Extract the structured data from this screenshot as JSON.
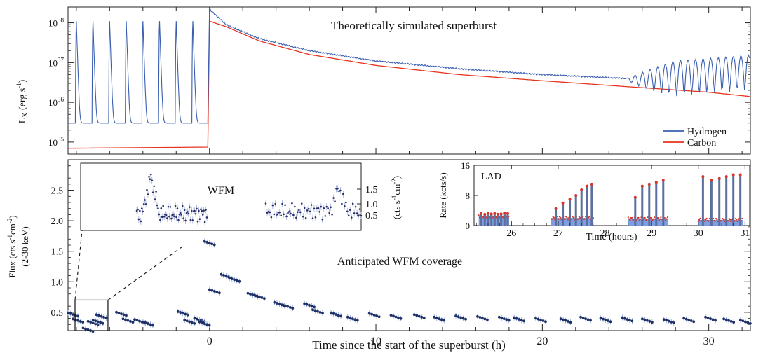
{
  "chart_data": [
    {
      "id": "top",
      "type": "line",
      "title": "Theoretically simulated superburst",
      "ylabel": "L_X (erg s^-1)",
      "yscale": "log",
      "ylim": [
        50000000000000000000000000000000000,
        250000000000000000000000000000000000000
      ],
      "xlim": [
        -8.5,
        32.5
      ],
      "ytick_labels": [
        "10^35",
        "10^36",
        "10^37",
        "10^38"
      ],
      "legend_position": "lower-right",
      "series": [
        {
          "name": "Hydrogen",
          "color": "#3a5fb0",
          "description_points": [
            {
              "x": -8.5,
              "y": 3e+35
            },
            {
              "x": -0.1,
              "y": 3e+35
            },
            {
              "x": 0.0,
              "y": 2.2e+38
            },
            {
              "x": 1.0,
              "y": 9e+37
            },
            {
              "x": 3.0,
              "y": 4e+37
            },
            {
              "x": 6.0,
              "y": 2e+37
            },
            {
              "x": 10.0,
              "y": 1.1e+37
            },
            {
              "x": 15.0,
              "y": 7e+36
            },
            {
              "x": 20.0,
              "y": 5e+36
            },
            {
              "x": 25.0,
              "y": 4e+36
            },
            {
              "x": 28.0,
              "y": 5e+36
            },
            {
              "x": 32.5,
              "y": 7e+36
            }
          ],
          "burst_peak": 1.1e+38,
          "burst_times": [
            -8.0,
            -7.0,
            -6.0,
            -5.0,
            -4.0,
            -3.0,
            -2.0,
            -1.0
          ]
        },
        {
          "name": "Carbon",
          "color": "#e8331e",
          "description_points": [
            {
              "x": -8.5,
              "y": 7e+34
            },
            {
              "x": -0.1,
              "y": 7.5e+34
            },
            {
              "x": 0.0,
              "y": 1.1e+38
            },
            {
              "x": 1.0,
              "y": 8e+37
            },
            {
              "x": 3.0,
              "y": 3.5e+37
            },
            {
              "x": 6.0,
              "y": 1.6e+37
            },
            {
              "x": 10.0,
              "y": 8.5e+36
            },
            {
              "x": 15.0,
              "y": 5e+36
            },
            {
              "x": 20.0,
              "y": 3.5e+36
            },
            {
              "x": 25.0,
              "y": 2.5e+36
            },
            {
              "x": 30.0,
              "y": 1.8e+36
            },
            {
              "x": 32.5,
              "y": 1.4e+36
            }
          ]
        }
      ]
    },
    {
      "id": "bottom",
      "type": "scatter",
      "xlabel": "Time since the start of the superburst (h)",
      "ylabel": "Flux (cts s^-1cm^-2) (2-30 keV)",
      "annotation": "Anticipated WFM coverage",
      "xlim": [
        -8.5,
        32.5
      ],
      "ylim": [
        0.2,
        3.0
      ],
      "xticks": [
        0,
        10,
        20,
        30
      ],
      "yticks": [
        0.5,
        1.0,
        1.5,
        2.0,
        2.5
      ],
      "points": [
        {
          "x": -8.2,
          "y": 0.45
        },
        {
          "x": -7.9,
          "y": 0.35
        },
        {
          "x": -7.3,
          "y": 0.2
        },
        {
          "x": -7.0,
          "y": 0.31
        },
        {
          "x": -6.7,
          "y": 0.33
        },
        {
          "x": -6.5,
          "y": 0.42
        },
        {
          "x": -5.3,
          "y": 0.46
        },
        {
          "x": -4.9,
          "y": 0.35
        },
        {
          "x": -4.2,
          "y": 0.34
        },
        {
          "x": -3.7,
          "y": 0.3
        },
        {
          "x": -1.6,
          "y": 0.47
        },
        {
          "x": -1.2,
          "y": 0.33
        },
        {
          "x": -0.6,
          "y": 0.36
        },
        {
          "x": -0.3,
          "y": 0.3
        },
        {
          "x": 0.0,
          "y": 1.62
        },
        {
          "x": 0.3,
          "y": 0.83
        },
        {
          "x": 1.0,
          "y": 1.08
        },
        {
          "x": 1.5,
          "y": 1.02
        },
        {
          "x": 2.6,
          "y": 0.77
        },
        {
          "x": 3.0,
          "y": 0.74
        },
        {
          "x": 4.2,
          "y": 0.62
        },
        {
          "x": 4.7,
          "y": 0.58
        },
        {
          "x": 6.0,
          "y": 0.6
        },
        {
          "x": 6.5,
          "y": 0.5
        },
        {
          "x": 7.6,
          "y": 0.45
        },
        {
          "x": 8.6,
          "y": 0.38
        },
        {
          "x": 9.9,
          "y": 0.44
        },
        {
          "x": 11.2,
          "y": 0.41
        },
        {
          "x": 12.6,
          "y": 0.42
        },
        {
          "x": 13.8,
          "y": 0.38
        },
        {
          "x": 15.1,
          "y": 0.4
        },
        {
          "x": 16.4,
          "y": 0.39
        },
        {
          "x": 17.7,
          "y": 0.38
        },
        {
          "x": 18.6,
          "y": 0.37
        },
        {
          "x": 19.9,
          "y": 0.36
        },
        {
          "x": 21.4,
          "y": 0.35
        },
        {
          "x": 22.6,
          "y": 0.38
        },
        {
          "x": 23.8,
          "y": 0.36
        },
        {
          "x": 25.1,
          "y": 0.37
        },
        {
          "x": 26.3,
          "y": 0.35
        },
        {
          "x": 27.6,
          "y": 0.34
        },
        {
          "x": 28.8,
          "y": 0.36
        },
        {
          "x": 30.1,
          "y": 0.38
        },
        {
          "x": 31.2,
          "y": 0.35
        },
        {
          "x": 32.2,
          "y": 0.33
        }
      ],
      "point_color": "#1c2f66",
      "zoom_box": {
        "x0": -8.5,
        "x1": -6.1,
        "y0": 0.2,
        "y1": 0.7
      }
    },
    {
      "id": "wfm_inset",
      "type": "scatter",
      "title": "WFM",
      "right_ylabel": "(cts s^-1cm^-2)",
      "right_tick_labels": [
        "0.5",
        "1.0",
        "1.5"
      ],
      "segments": [
        {
          "x_start": 0.2,
          "x_end": 0.45,
          "mean": 1.85,
          "spike_at": 0.25,
          "spike_y": 2.65
        },
        {
          "x_start": 0.66,
          "x_end": 1.0,
          "mean": 1.9,
          "spike_at": 0.92,
          "spike_y": 2.4
        }
      ]
    },
    {
      "id": "lad_inset",
      "type": "bar",
      "title": "LAD",
      "xlabel": "Time (hours)",
      "ylabel": "Rate (kcts/s)",
      "xlim": [
        25.2,
        31.1
      ],
      "ylim": [
        0,
        16
      ],
      "xticks": [
        26,
        27,
        28,
        29,
        30,
        31
      ],
      "yticks": [
        0,
        8,
        16
      ],
      "color": "#7d9ee0",
      "marker_color": "#d6352a",
      "segments": [
        {
          "x_start": 25.3,
          "x_end": 25.95,
          "base": 2.5,
          "burst_times": [
            25.35,
            25.43,
            25.5,
            25.57,
            25.64,
            25.71,
            25.78,
            25.85,
            25.92
          ],
          "burst_peaks": [
            3.2,
            3.0,
            3.3,
            3.1,
            3.2,
            3.0,
            3.1,
            3.3,
            3.2
          ]
        },
        {
          "x_start": 26.85,
          "x_end": 27.75,
          "base": 2.0,
          "burst_times": [
            26.95,
            27.1,
            27.25,
            27.38,
            27.5,
            27.62,
            27.72
          ],
          "burst_peaks": [
            4.5,
            6.0,
            7.0,
            8.0,
            9.5,
            10.5,
            11.0
          ]
        },
        {
          "x_start": 28.5,
          "x_end": 29.35,
          "base": 1.8,
          "burst_times": [
            28.65,
            28.8,
            28.95,
            29.1,
            29.25
          ],
          "burst_peaks": [
            7.5,
            10.5,
            11.0,
            11.5,
            12.0
          ]
        },
        {
          "x_start": 30.0,
          "x_end": 30.95,
          "base": 1.5,
          "burst_times": [
            30.1,
            30.28,
            30.45,
            30.6,
            30.75,
            30.9
          ],
          "burst_peaks": [
            13.0,
            12.0,
            12.5,
            13.0,
            13.5,
            13.5
          ]
        }
      ]
    }
  ]
}
